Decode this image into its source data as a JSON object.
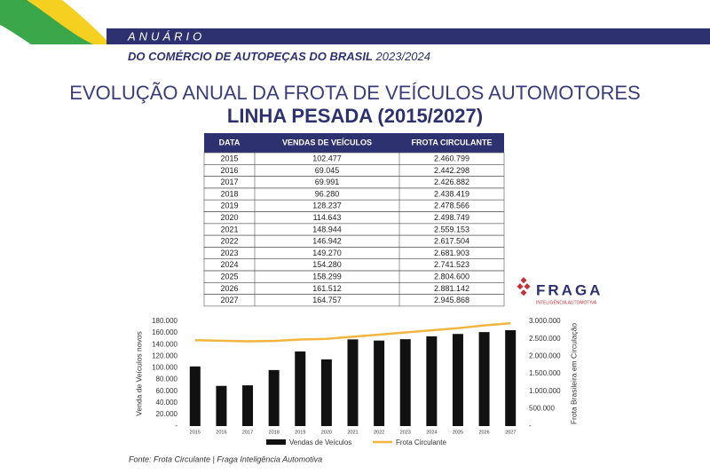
{
  "header": {
    "kicker": "ANUÁRIO",
    "subtitle": "DO COMÉRCIO DE AUTOPEÇAS DO BRASIL",
    "edition": "2023/2024"
  },
  "title": {
    "line1": "EVOLUÇÃO ANUAL DA FROTA DE VEÍCULOS AUTOMOTORES",
    "line2": "LINHA PESADA (2015/2027)"
  },
  "table": {
    "columns": [
      "DATA",
      "VENDAS DE VEÍCULOS",
      "FROTA CIRCULANTE"
    ],
    "rows": [
      [
        "2015",
        "102.477",
        "2.460.799"
      ],
      [
        "2016",
        "69.045",
        "2.442.298"
      ],
      [
        "2017",
        "69.991",
        "2.426.882"
      ],
      [
        "2018",
        "96.280",
        "2.438.419"
      ],
      [
        "2019",
        "128.237",
        "2.478.566"
      ],
      [
        "2020",
        "114.643",
        "2.498.749"
      ],
      [
        "2021",
        "148.944",
        "2.559.153"
      ],
      [
        "2022",
        "146.942",
        "2.617.504"
      ],
      [
        "2023",
        "149.270",
        "2.681.903"
      ],
      [
        "2024",
        "154.280",
        "2.741.523"
      ],
      [
        "2025",
        "158.299",
        "2.804.600"
      ],
      [
        "2026",
        "161.512",
        "2.881.142"
      ],
      [
        "2027",
        "164.757",
        "2.945.868"
      ]
    ]
  },
  "logo": {
    "name": "FRAGA",
    "tagline": "INTELIGÊNCIA AUTOMOTIVA"
  },
  "chart_data": {
    "type": "bar",
    "y_label": "Venda de Veículos novos",
    "y2_label": "Frota Brasileira em Circulação",
    "categories": [
      "2015",
      "2016",
      "2017",
      "2018",
      "2019",
      "2020",
      "2021",
      "2022",
      "2023",
      "2024",
      "2025",
      "2026",
      "2027"
    ],
    "series": [
      {
        "name": "Vendas de Veículos",
        "color": "#111111",
        "values": [
          102477,
          69045,
          69991,
          96280,
          128237,
          114643,
          148944,
          146942,
          149270,
          154280,
          158299,
          161512,
          164757
        ]
      },
      {
        "name": "Frota Circulante",
        "type": "line",
        "axis": "y2",
        "color": "#f2b640",
        "values": [
          2460799,
          2442298,
          2426882,
          2438419,
          2478566,
          2498749,
          2559153,
          2617504,
          2681903,
          2741523,
          2804600,
          2881142,
          2945868
        ]
      }
    ],
    "ylim": [
      0,
      180000
    ],
    "yticks": [
      {
        "value": 0,
        "label": "-"
      },
      {
        "value": 20000,
        "label": "20.000"
      },
      {
        "value": 40000,
        "label": "40.000"
      },
      {
        "value": 60000,
        "label": "60.000"
      },
      {
        "value": 80000,
        "label": "80.000"
      },
      {
        "value": 100000,
        "label": "100.000"
      },
      {
        "value": 120000,
        "label": "120.000"
      },
      {
        "value": 140000,
        "label": "140.000"
      },
      {
        "value": 160000,
        "label": "160.000"
      },
      {
        "value": 180000,
        "label": "180.000"
      }
    ],
    "y2lim": [
      0,
      3000000
    ],
    "y2ticks": [
      {
        "value": 0,
        "label": "-"
      },
      {
        "value": 500000,
        "label": "500.000"
      },
      {
        "value": 1000000,
        "label": "1.000.000"
      },
      {
        "value": 1500000,
        "label": "1.500.000"
      },
      {
        "value": 2000000,
        "label": "2.000.000"
      },
      {
        "value": 2500000,
        "label": "2.500.000"
      },
      {
        "value": 3000000,
        "label": "3.000.000"
      }
    ]
  },
  "source": "Fonte: Frota Circulante | Fraga Inteligência Automotiva"
}
